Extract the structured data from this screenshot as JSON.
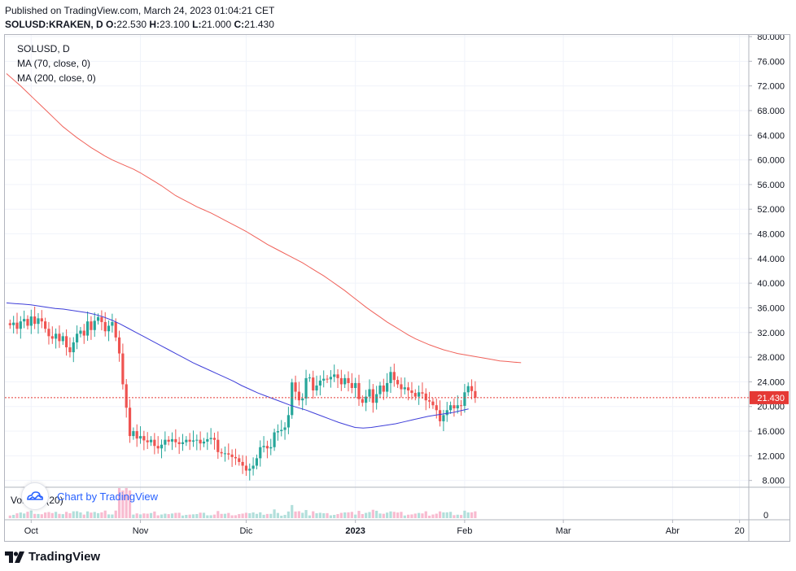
{
  "header": {
    "published": "Published on TradingView.com, March 24, 2023 01:04:21 CET",
    "symbol": "SOLUSD:KRAKEN, D",
    "o_label": "O:",
    "o_value": "22.530",
    "h_label": "H:",
    "h_value": "23.100",
    "l_label": "L:",
    "l_value": "21.000",
    "c_label": "C:",
    "c_value": "21.430"
  },
  "legend": {
    "symbol": "SOLUSD, D",
    "ma70": "MA (70, close, 0)",
    "ma200": "MA (200, close, 0)",
    "volume": "Volume (20)"
  },
  "watermark": "Chart by TradingView",
  "footer_brand": "TradingView",
  "colors": {
    "up": "#26a69a",
    "down": "#ef5350",
    "up_vol": "#b2dfdb",
    "down_vol": "#f8bbd0",
    "ma70": "#3f3fd9",
    "ma200": "#f0625a",
    "last_price": "#e53935",
    "grid": "#f0f3fa"
  },
  "chart_data": {
    "type": "candlestick",
    "symbol": "SOLUSD:KRAKEN",
    "interval": "D",
    "y_ticks": [
      "80.000",
      "76.000",
      "72.000",
      "68.000",
      "64.000",
      "60.000",
      "56.000",
      "52.000",
      "48.000",
      "44.000",
      "40.000",
      "36.000",
      "32.000",
      "28.000",
      "24.000",
      "20.000",
      "16.000",
      "12.000",
      "8.000"
    ],
    "ylim": [
      4,
      80
    ],
    "volume_tick": "0",
    "x_ticks": [
      {
        "label": "Oct",
        "day": 7
      },
      {
        "label": "Nov",
        "day": 38
      },
      {
        "label": "Dic",
        "day": 68
      },
      {
        "label": "2023",
        "day": 99,
        "bold": true
      },
      {
        "label": "Feb",
        "day": 130
      },
      {
        "label": "Mar",
        "day": 158
      },
      {
        "label": "Abr",
        "day": 189
      },
      {
        "label": "20",
        "day": 208
      }
    ],
    "last_price": 21.43,
    "last_price_label": "21.430",
    "closes": [
      33.2,
      33.6,
      32.6,
      33.8,
      34.2,
      33.1,
      34.6,
      33.4,
      34.3,
      33.8,
      32.6,
      31.4,
      31.0,
      31.8,
      30.6,
      31.4,
      29.6,
      28.8,
      30.4,
      31.8,
      32.3,
      31.5,
      33.8,
      32.4,
      33.9,
      34.5,
      33.7,
      32.2,
      33.1,
      33.7,
      31.2,
      28.6,
      23.6,
      19.8,
      15.2,
      16.0,
      14.8,
      15.2,
      14.5,
      14.2,
      14.6,
      13.6,
      13.2,
      13.8,
      14.6,
      14.3,
      14.7,
      14.2,
      13.9,
      14.2,
      14.6,
      14.3,
      14.5,
      14.6,
      14.0,
      14.3,
      14.7,
      14.9,
      14.6,
      12.6,
      12.4,
      12.4,
      12.2,
      11.8,
      11.6,
      11.0,
      10.4,
      9.6,
      9.9,
      10.4,
      11.6,
      13.4,
      13.6,
      13.2,
      13.4,
      15.8,
      16.0,
      16.2,
      16.6,
      18.6,
      23.9,
      22.4,
      21.0,
      21.3,
      24.6,
      24.7,
      22.6,
      23.4,
      24.2,
      24.5,
      24.4,
      24.8,
      25.2,
      24.6,
      23.6,
      24.6,
      23.8,
      23.0,
      23.8,
      21.2,
      20.6,
      21.6,
      22.8,
      20.6,
      22.0,
      23.4,
      22.4,
      23.8,
      25.6,
      24.3,
      23.6,
      22.8,
      23.1,
      22.6,
      22.2,
      21.6,
      22.3,
      22.1,
      21.0,
      20.8,
      20.2,
      19.4,
      17.6,
      18.6,
      19.4,
      20.2,
      19.7,
      20.2,
      20.1,
      22.3,
      23.3,
      22.5,
      21.43
    ],
    "ma200": [
      74.0,
      73.0,
      72.0,
      70.9,
      69.8,
      68.7,
      67.6,
      66.5,
      65.4,
      64.5,
      63.6,
      62.8,
      62.0,
      61.3,
      60.6,
      60.0,
      59.5,
      59.0,
      58.5,
      57.9,
      57.2,
      56.5,
      55.8,
      55.0,
      54.2,
      53.6,
      53.0,
      52.4,
      51.9,
      51.4,
      50.8,
      50.2,
      49.6,
      49.0,
      48.4,
      47.7,
      47.0,
      46.3,
      45.7,
      45.1,
      44.5,
      43.9,
      43.3,
      42.6,
      41.9,
      41.2,
      40.4,
      39.6,
      38.8,
      37.9,
      37.0,
      36.1,
      35.3,
      34.5,
      33.7,
      33.0,
      32.3,
      31.6,
      31.0,
      30.5,
      30.0,
      29.6,
      29.2,
      28.9,
      28.6,
      28.4,
      28.2,
      28.0,
      27.8,
      27.6,
      27.4,
      27.3,
      27.2,
      27.1
    ],
    "ma70": [
      36.8,
      36.7,
      36.6,
      36.5,
      36.3,
      36.1,
      35.9,
      35.8,
      35.6,
      35.4,
      35.2,
      34.9,
      34.5,
      34.0,
      33.4,
      32.7,
      32.0,
      31.3,
      30.6,
      29.9,
      29.2,
      28.5,
      27.8,
      27.1,
      26.5,
      25.9,
      25.3,
      24.7,
      24.1,
      23.4,
      22.8,
      22.2,
      21.7,
      21.2,
      20.7,
      20.2,
      19.8,
      19.4,
      18.9,
      18.4,
      17.9,
      17.4,
      17.0,
      16.6,
      16.5,
      16.6,
      16.8,
      17.0,
      17.2,
      17.5,
      17.8,
      18.1,
      18.4,
      18.6,
      18.8,
      19.0,
      19.3,
      19.6
    ]
  }
}
